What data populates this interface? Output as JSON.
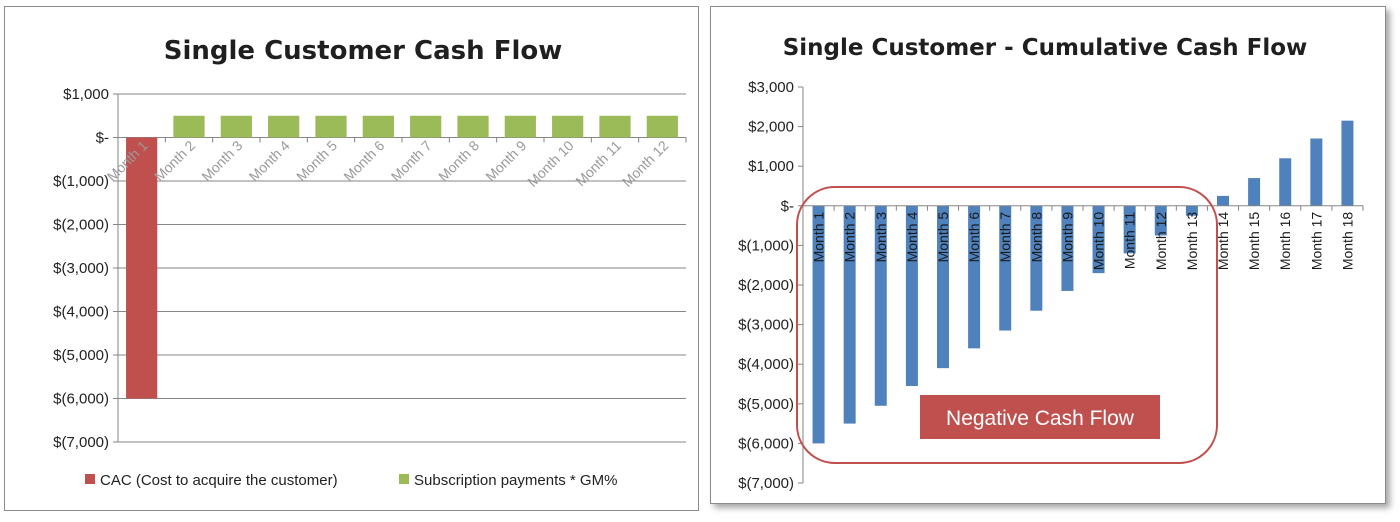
{
  "chart_data": [
    {
      "type": "bar",
      "title": "Single Customer Cash Flow",
      "categories": [
        "Month 1",
        "Month 2",
        "Month 3",
        "Month 4",
        "Month 5",
        "Month 6",
        "Month 7",
        "Month 8",
        "Month 9",
        "Month 10",
        "Month 11",
        "Month 12"
      ],
      "series": [
        {
          "name": "CAC (Cost to acquire the customer)",
          "color": "#c0504d",
          "values": [
            -6000,
            null,
            null,
            null,
            null,
            null,
            null,
            null,
            null,
            null,
            null,
            null
          ]
        },
        {
          "name": "Subscription payments * GM%",
          "color": "#9bbb59",
          "values": [
            null,
            500,
            500,
            500,
            500,
            500,
            500,
            500,
            500,
            500,
            500,
            500
          ]
        }
      ],
      "yticks": [
        1000,
        0,
        -1000,
        -2000,
        -3000,
        -4000,
        -5000,
        -6000,
        -7000
      ],
      "ytick_labels": [
        "$1,000",
        "$-",
        "$(1,000)",
        "$(2,000)",
        "$(3,000)",
        "$(4,000)",
        "$(5,000)",
        "$(6,000)",
        "$(7,000)"
      ],
      "ylim": [
        -7000,
        1000
      ],
      "grid": true,
      "legend": "bottom"
    },
    {
      "type": "bar",
      "title": "Single Customer - Cumulative Cash Flow",
      "categories": [
        "Month 1",
        "Month 2",
        "Month 3",
        "Month 4",
        "Month 5",
        "Month 6",
        "Month 7",
        "Month 8",
        "Month 9",
        "Month 10",
        "Month 11",
        "Month 12",
        "Month 13",
        "Month 14",
        "Month 15",
        "Month 16",
        "Month 17",
        "Month 18"
      ],
      "series": [
        {
          "color": "#4f81bd",
          "values": [
            -6000,
            -5500,
            -5050,
            -4550,
            -4100,
            -3600,
            -3150,
            -2650,
            -2150,
            -1700,
            -1200,
            -750,
            -250,
            250,
            700,
            1200,
            1700,
            2150
          ]
        }
      ],
      "yticks": [
        3000,
        2000,
        1000,
        0,
        -1000,
        -2000,
        -3000,
        -4000,
        -5000,
        -6000,
        -7000
      ],
      "ytick_labels": [
        "$3,000",
        "$2,000",
        "$1,000",
        "$-",
        "$(1,000)",
        "$(2,000)",
        "$(3,000)",
        "$(4,000)",
        "$(5,000)",
        "$(6,000)",
        "$(7,000)"
      ],
      "ylim": [
        -7000,
        3000
      ],
      "grid": false,
      "annotation": {
        "text": "Negative Cash Flow",
        "color": "#c0504d"
      }
    }
  ]
}
